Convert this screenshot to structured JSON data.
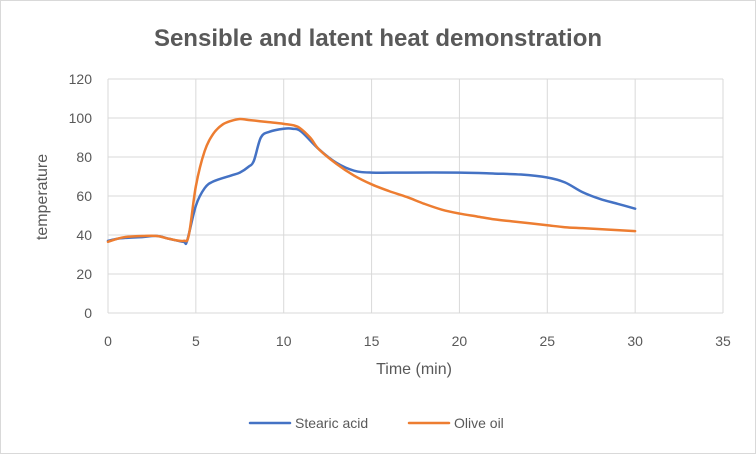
{
  "chart_data": {
    "type": "scatter",
    "title": "Sensible and latent heat demonstration",
    "xlabel": "Time (min)",
    "ylabel": "temperature",
    "xlim": [
      0,
      35
    ],
    "ylim": [
      0,
      120
    ],
    "x_ticks": [
      0,
      5,
      10,
      15,
      20,
      25,
      30,
      35
    ],
    "y_ticks": [
      0,
      20,
      40,
      60,
      80,
      100,
      120
    ],
    "x_tick_labels": [
      "0",
      "5",
      "10",
      "15",
      "20",
      "25",
      "30",
      "35"
    ],
    "y_tick_labels": [
      "0",
      "20",
      "40",
      "60",
      "80",
      "100",
      "120"
    ],
    "grid": true,
    "legend_position": "bottom",
    "series": [
      {
        "name": "Stearic acid",
        "color": "#4472C4",
        "points": [
          [
            0,
            37
          ],
          [
            0.5,
            38
          ],
          [
            1,
            38.5
          ],
          [
            2,
            39
          ],
          [
            2.8,
            39.5
          ],
          [
            3.5,
            38
          ],
          [
            4.3,
            36.5
          ],
          [
            4.5,
            37
          ],
          [
            5,
            55
          ],
          [
            5.5,
            64
          ],
          [
            6,
            67.5
          ],
          [
            7,
            70.5
          ],
          [
            7.5,
            72
          ],
          [
            8,
            75
          ],
          [
            8.3,
            78
          ],
          [
            8.7,
            90
          ],
          [
            9.2,
            93
          ],
          [
            10,
            94.5
          ],
          [
            10.5,
            94.5
          ],
          [
            11,
            93
          ],
          [
            12,
            84
          ],
          [
            13,
            77
          ],
          [
            14,
            73
          ],
          [
            15,
            72
          ],
          [
            17,
            72
          ],
          [
            20,
            72
          ],
          [
            22,
            71.5
          ],
          [
            23.5,
            71
          ],
          [
            25,
            69.5
          ],
          [
            26,
            67
          ],
          [
            27,
            62
          ],
          [
            28,
            58.5
          ],
          [
            29,
            56
          ],
          [
            30,
            53.5
          ]
        ]
      },
      {
        "name": "Olive oil",
        "color": "#ED7D31",
        "points": [
          [
            0,
            36.5
          ],
          [
            0.5,
            38
          ],
          [
            1,
            39
          ],
          [
            2,
            39.5
          ],
          [
            2.8,
            39.5
          ],
          [
            3.5,
            38
          ],
          [
            4.3,
            37
          ],
          [
            4.6,
            40
          ],
          [
            5,
            65
          ],
          [
            5.5,
            83
          ],
          [
            6,
            92
          ],
          [
            6.5,
            96.5
          ],
          [
            7,
            98.5
          ],
          [
            7.5,
            99.5
          ],
          [
            8,
            99
          ],
          [
            9,
            98
          ],
          [
            10,
            97
          ],
          [
            10.8,
            95.5
          ],
          [
            11.5,
            90
          ],
          [
            12,
            84
          ],
          [
            13,
            76.5
          ],
          [
            14,
            70.5
          ],
          [
            15,
            66
          ],
          [
            16,
            62.5
          ],
          [
            17,
            59.5
          ],
          [
            18,
            56
          ],
          [
            19,
            53
          ],
          [
            20,
            51
          ],
          [
            21,
            49.5
          ],
          [
            22,
            48
          ],
          [
            23,
            47
          ],
          [
            24,
            46
          ],
          [
            25,
            45
          ],
          [
            26,
            44
          ],
          [
            27,
            43.5
          ],
          [
            28,
            43
          ],
          [
            29,
            42.5
          ],
          [
            30,
            42
          ]
        ]
      }
    ]
  }
}
